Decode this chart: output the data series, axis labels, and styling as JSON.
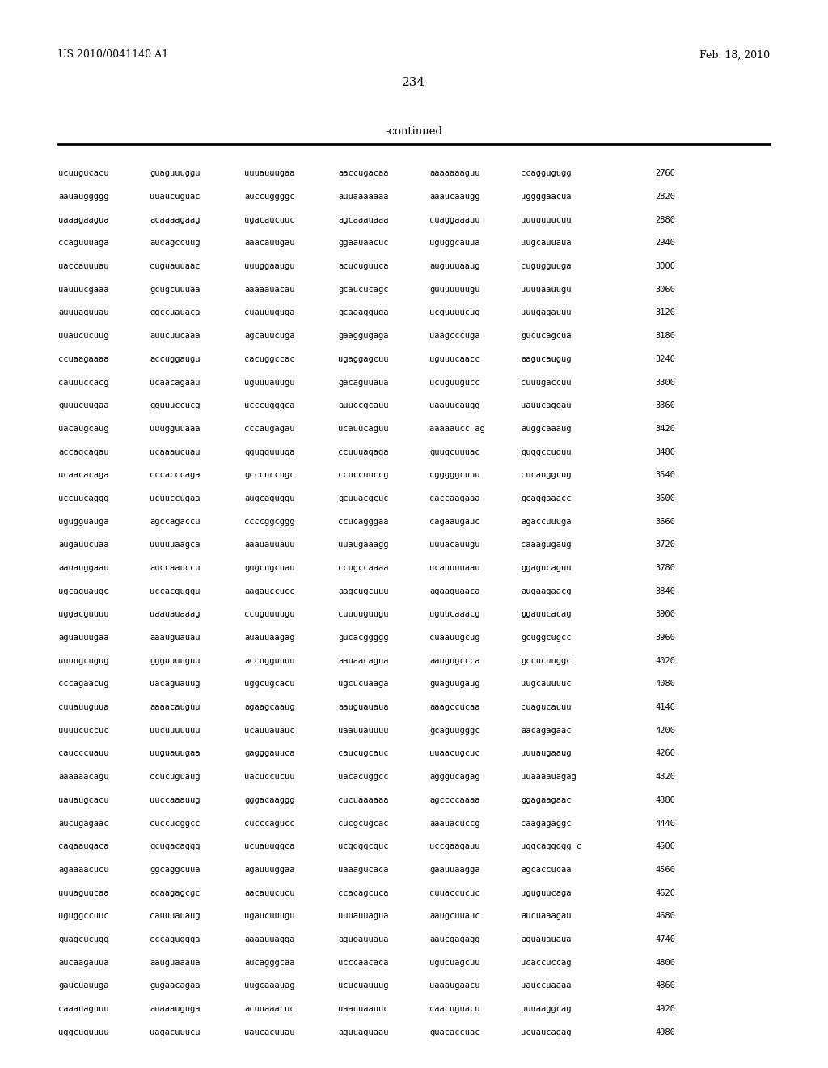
{
  "header_left": "US 2010/0041140 A1",
  "header_right": "Feb. 18, 2010",
  "page_number": "234",
  "continued_label": "-continued",
  "background_color": "#ffffff",
  "text_color": "#000000",
  "rows": [
    [
      "ucuugucacu",
      "guaguuuggu",
      "uuuauuugaa",
      "aaccugacaa",
      "aaaaaaaguu",
      "ccaggugugg",
      "2760"
    ],
    [
      "aauauggggg",
      "uuaucuguac",
      "auccuggggc",
      "auuaaaaaaa",
      "aaaucaaugg",
      "uggggaacua",
      "2820"
    ],
    [
      "uaaagaagua",
      "acaaaagaag",
      "ugacaucuuc",
      "agcaaauaaa",
      "cuaggaaauu",
      "uuuuuuucuu",
      "2880"
    ],
    [
      "ccaguuuaga",
      "aucagccuug",
      "aaacauugau",
      "ggaauaacuc",
      "uguggcauua",
      "uugcauuaua",
      "2940"
    ],
    [
      "uaccauuuau",
      "cuguauuaac",
      "uuuggaaugu",
      "acucuguuca",
      "auguuuaaug",
      "cugugguuga",
      "3000"
    ],
    [
      "uauuucgaaa",
      "gcugcuuuaa",
      "aaaaauacau",
      "gcaucucagc",
      "guuuuuuugu",
      "uuuuaauugu",
      "3060"
    ],
    [
      "auuuaguuau",
      "ggccuauaca",
      "cuauuuguga",
      "gcaaagguga",
      "ucguuuucug",
      "uuugagauuu",
      "3120"
    ],
    [
      "uuaucucuug",
      "auucuucaaa",
      "agcauucuga",
      "gaaggugaga",
      "uaagcccuga",
      "gucucagcua",
      "3180"
    ],
    [
      "ccuaagaaaa",
      "accuggaugu",
      "cacuggccac",
      "ugaggagcuu",
      "uguuucaacc",
      "aagucaugug",
      "3240"
    ],
    [
      "cauuuccacg",
      "ucaacagaau",
      "uguuuauugu",
      "gacaguuaua",
      "ucuguugucc",
      "cuuugaccuu",
      "3300"
    ],
    [
      "guuucuugaa",
      "gguuuccucg",
      "ucccugggca",
      "auuccgcauu",
      "uaauucaugg",
      "uauucaggau",
      "3360"
    ],
    [
      "uacaugcaug",
      "uuugguuaaa",
      "cccaugagau",
      "ucauucaguu",
      "aaaaaucc ag",
      "auggcaaaug",
      "3420"
    ],
    [
      "accagcagau",
      "ucaaaucuau",
      "ggugguuuga",
      "ccuuuagaga",
      "guugcuuuac",
      "guggccuguu",
      "3480"
    ],
    [
      "ucaacacaga",
      "cccacccaga",
      "gcccuccugc",
      "ccuccuuccg",
      "cgggggcuuu",
      "cucauggcug",
      "3540"
    ],
    [
      "uccuucaggg",
      "ucuuccugaa",
      "augcaguggu",
      "gcuuacgcuc",
      "caccaagaaa",
      "gcaggaaacc",
      "3600"
    ],
    [
      "ugugguauga",
      "agccagaccu",
      "ccccggcggg",
      "ccucagggaa",
      "cagaaugauc",
      "agaccuuuga",
      "3660"
    ],
    [
      "augauucuaa",
      "uuuuuaagca",
      "aaauauuauu",
      "uuaugaaagg",
      "uuuacauugu",
      "caaagugaug",
      "3720"
    ],
    [
      "aauauggaau",
      "auccaauccu",
      "gugcugcuau",
      "ccugccaaaa",
      "ucauuuuaau",
      "ggagucaguu",
      "3780"
    ],
    [
      "ugcaguaugc",
      "uccacguggu",
      "aagauccucc",
      "aagcugcuuu",
      "agaaguaaca",
      "augaagaacg",
      "3840"
    ],
    [
      "uggacguuuu",
      "uaauauaaag",
      "ccuguuuugu",
      "cuuuuguugu",
      "uguucaaacg",
      "ggauucacag",
      "3900"
    ],
    [
      "aguauuugaa",
      "aaauguauau",
      "auauuaagag",
      "gucacggggg",
      "cuaauugcug",
      "gcuggcugcc",
      "3960"
    ],
    [
      "uuuugcugug",
      "ggguuuuguu",
      "accugguuuu",
      "aauaacagua",
      "aaugugccca",
      "gccucuuggc",
      "4020"
    ],
    [
      "cccagaacug",
      "uacaguauug",
      "uggcugcacu",
      "ugcucuaaga",
      "guaguugaug",
      "uugcauuuuc",
      "4080"
    ],
    [
      "cuuauuguua",
      "aaaacauguu",
      "agaagcaaug",
      "aauguauaua",
      "aaagccucaa",
      "cuagucauuu",
      "4140"
    ],
    [
      "uuuucuccuc",
      "uucuuuuuuu",
      "ucauuauauc",
      "uaauuauuuu",
      "gcaguugggc",
      "aacagagaac",
      "4200"
    ],
    [
      "caucccuauu",
      "uuguauugaa",
      "gagggauuca",
      "caucugcauc",
      "uuaacugcuc",
      "uuuaugaaug",
      "4260"
    ],
    [
      "aaaaaacagu",
      "ccucuguaug",
      "uacuccucuu",
      "uacacuggcc",
      "agggucagag",
      "uuaaaauagag",
      "4320"
    ],
    [
      "uauaugcacu",
      "uuccaaauug",
      "gggacaaggg",
      "cucuaaaaaa",
      "agccccaaaa",
      "ggagaagaac",
      "4380"
    ],
    [
      "aucugagaac",
      "cuccucggcc",
      "cucccagucc",
      "cucgcugcac",
      "aaauacuccg",
      "caagagaggc",
      "4440"
    ],
    [
      "cagaaugaca",
      "gcugacaggg",
      "ucuauuggca",
      "ucggggcguc",
      "uccgaagauu",
      "uggcaggggg c",
      "4500"
    ],
    [
      "agaaaacucu",
      "ggcaggcuua",
      "agauuuggaa",
      "uaaagucaca",
      "gaauuaagga",
      "agcaccucaa",
      "4560"
    ],
    [
      "uuuaguucaa",
      "acaagagcgc",
      "aacauucucu",
      "ccacagcuca",
      "cuuaccucuc",
      "uguguucaga",
      "4620"
    ],
    [
      "uguggccuuc",
      "cauuuauaug",
      "ugaucuuugu",
      "uuuauuagua",
      "aaugcuuauc",
      "aucuaaagau",
      "4680"
    ],
    [
      "guagcucugg",
      "cccaguggga",
      "aaaauuagga",
      "agugauuaua",
      "aaucgagagg",
      "aguauauaua",
      "4740"
    ],
    [
      "aucaagauua",
      "aauguaaaua",
      "aucagggcaa",
      "ucccaacaca",
      "ugucuagcuu",
      "ucaccuccag",
      "4800"
    ],
    [
      "gaucuauuga",
      "gugaacagaa",
      "uugcaaauag",
      "ucucuauuug",
      "uaaaugaacu",
      "uauccuaaaa",
      "4860"
    ],
    [
      "caaauaguuu",
      "auaaauguga",
      "acuuaaacuc",
      "uaauuaauuc",
      "caacuguacu",
      "uuuaaggcag",
      "4920"
    ],
    [
      "uggcuguuuu",
      "uagacuuucu",
      "uaucacuuau",
      "aguuaguaau",
      "guacaccuac",
      "ucuaucagag",
      "4980"
    ]
  ]
}
